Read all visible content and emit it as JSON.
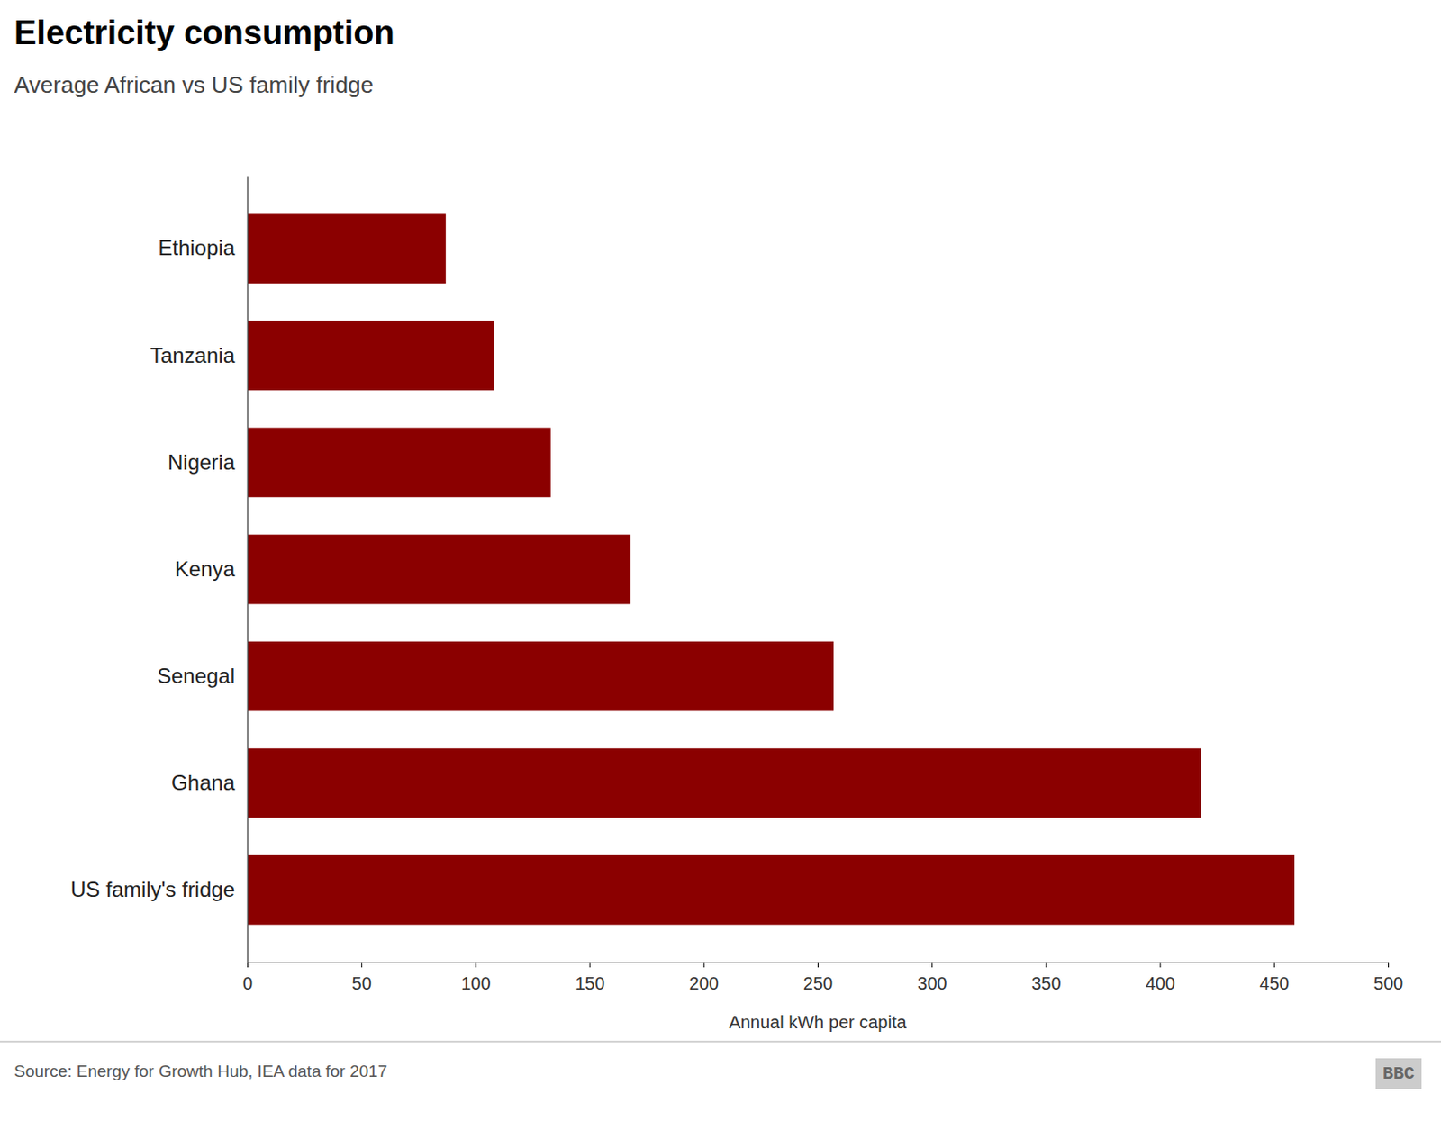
{
  "chart_data": {
    "type": "bar",
    "orientation": "horizontal",
    "title": "Electricity consumption",
    "subtitle": "Average African vs US family fridge",
    "categories": [
      "US family's fridge",
      "Ghana",
      "Senegal",
      "Kenya",
      "Nigeria",
      "Tanzania",
      "Ethiopia"
    ],
    "values": [
      459,
      418,
      257,
      168,
      133,
      108,
      87
    ],
    "color": "#8B0000",
    "xlabel": "Annual kWh per capita",
    "xlim": [
      0,
      500
    ],
    "xticks": [
      0,
      50,
      100,
      150,
      200,
      250,
      300,
      350,
      400,
      450,
      500
    ],
    "grid": false,
    "annotations": [
      "Source: Energy for Growth Hub, IEA data for 2017",
      "BBC"
    ]
  }
}
